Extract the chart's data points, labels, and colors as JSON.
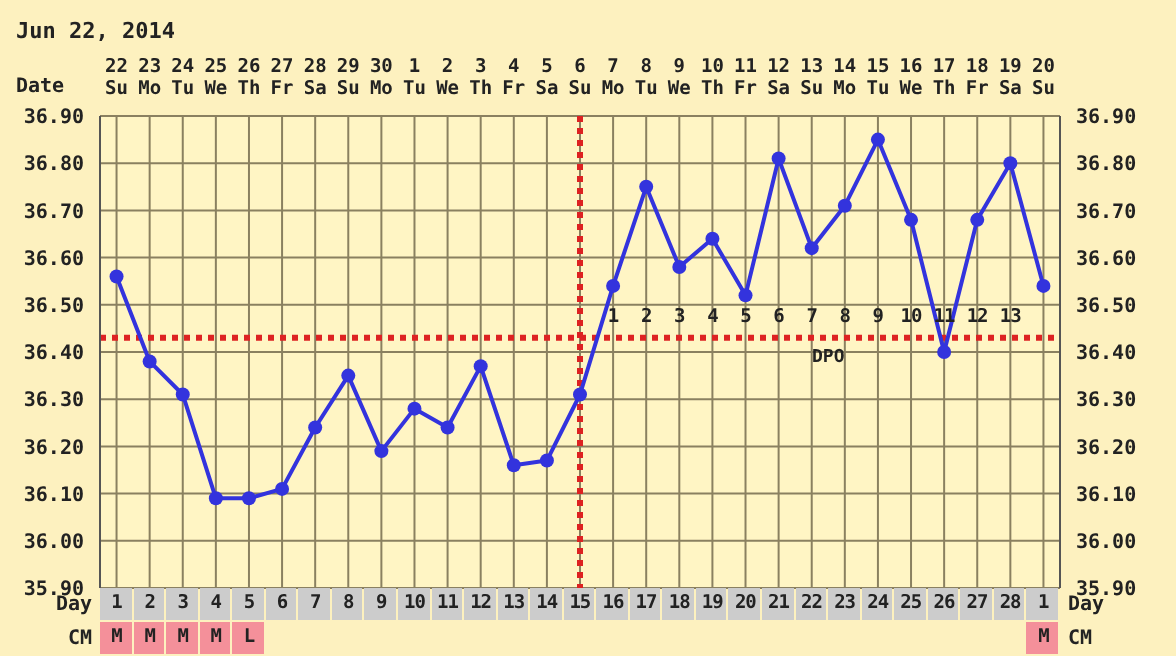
{
  "chart_data": {
    "type": "line",
    "title": "Jun 22, 2014",
    "xlabel": "Date",
    "categories": [
      "22 Su",
      "23 Mo",
      "24 Tu",
      "25 We",
      "26 Th",
      "27 Fr",
      "28 Sa",
      "29 Su",
      "30 Mo",
      "1 Tu",
      "2 We",
      "3 Th",
      "4 Fr",
      "5 Sa",
      "6 Su",
      "7 Mo",
      "8 Tu",
      "9 We",
      "10 Th",
      "11 Fr",
      "12 Sa",
      "13 Su",
      "14 Mo",
      "15 Tu",
      "16 We",
      "17 Th",
      "18 Fr",
      "19 Sa",
      "20 Su"
    ],
    "series": [
      {
        "color": "#3333dd",
        "values": [
          36.56,
          36.38,
          36.31,
          36.09,
          36.09,
          36.11,
          36.24,
          36.35,
          36.19,
          36.28,
          36.24,
          36.37,
          36.16,
          36.17,
          36.31,
          36.54,
          36.75,
          36.58,
          36.64,
          36.52,
          36.81,
          36.62,
          36.71,
          36.85,
          36.68,
          36.4,
          36.68,
          36.8,
          36.54
        ]
      }
    ],
    "ylim": [
      35.9,
      36.9
    ],
    "yticks": [
      {
        "value": 35.9,
        "label": "35.90"
      },
      {
        "value": 36.0,
        "label": "36.00"
      },
      {
        "value": 36.1,
        "label": "36.10"
      },
      {
        "value": 36.2,
        "label": "36.20"
      },
      {
        "value": 36.3,
        "label": "36.30"
      },
      {
        "value": 36.4,
        "label": "36.40"
      },
      {
        "value": 36.5,
        "label": "36.50"
      },
      {
        "value": 36.6,
        "label": "36.60"
      },
      {
        "value": 36.7,
        "label": "36.70"
      },
      {
        "value": 36.8,
        "label": "36.80"
      },
      {
        "value": 36.9,
        "label": "36.90"
      }
    ],
    "y2lim": [
      35.9,
      36.9
    ],
    "y2ticks": [
      {
        "value": 35.9,
        "label": "35.90"
      },
      {
        "value": 36.0,
        "label": "36.00"
      },
      {
        "value": 36.1,
        "label": "36.10"
      },
      {
        "value": 36.2,
        "label": "36.20"
      },
      {
        "value": 36.3,
        "label": "36.30"
      },
      {
        "value": 36.4,
        "label": "36.40"
      },
      {
        "value": 36.5,
        "label": "36.50"
      },
      {
        "value": 36.6,
        "label": "36.60"
      },
      {
        "value": 36.7,
        "label": "36.70"
      },
      {
        "value": 36.8,
        "label": "36.80"
      },
      {
        "value": 36.9,
        "label": "36.90"
      }
    ],
    "grid": true,
    "marker": "circle",
    "line_style": "solid",
    "ref_lines": [
      {
        "axis": "y",
        "value": 36.43,
        "color": "#dd2222",
        "line_style": "dotted"
      },
      {
        "axis": "x",
        "value": "6 Su",
        "color": "#dd2222",
        "line_style": "dotted"
      }
    ],
    "annotations": [
      "Day",
      "CM",
      "DPO",
      "1 2 3 4 5 6 7 8 9 10 11 12 13",
      "1 2 3 4 5 6 7 8 9 10 11 12 13 14 15 16 17 18 19 20 21 22 23 24 25 26 27 28 1",
      "M M M M L",
      "M"
    ]
  }
}
